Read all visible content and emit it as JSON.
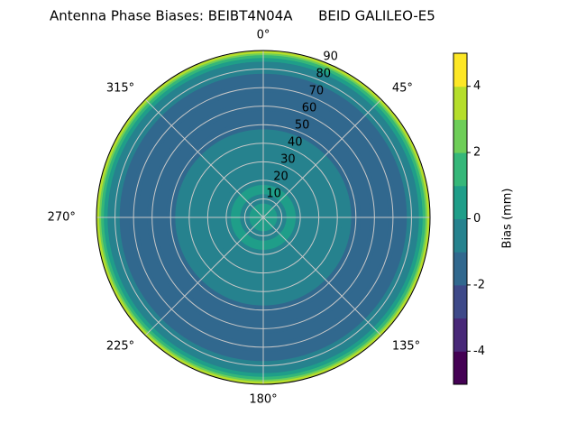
{
  "chart_data": {
    "type": "polar-contour",
    "title": "Antenna Phase Biases: BEIBT4N04A      BEID GALILEO-E5",
    "colorbar_label": "Bias (mm)",
    "zenith": [
      0,
      5,
      10,
      15,
      20,
      25,
      30,
      35,
      40,
      45,
      50,
      55,
      60,
      65,
      70,
      75,
      80,
      83,
      85,
      87,
      88,
      89,
      90
    ],
    "values": [
      0.6,
      0.4,
      -0.2,
      0.3,
      -0.3,
      -0.4,
      -0.4,
      -0.5,
      -0.6,
      -0.9,
      -1.2,
      -1.4,
      -1.5,
      -1.5,
      -1.5,
      -1.3,
      -0.8,
      -0.3,
      0.5,
      1.5,
      2.5,
      3.5,
      3.8
    ],
    "rlim": [
      0,
      90
    ],
    "rticks": [
      10,
      20,
      30,
      40,
      50,
      60,
      70,
      80,
      90
    ],
    "theta_ticks": [
      {
        "value": 0,
        "label": "0°"
      },
      {
        "value": 45,
        "label": "45°"
      },
      {
        "value": 90,
        "label": "90°"
      },
      {
        "value": 135,
        "label": "135°"
      },
      {
        "value": 180,
        "label": "180°"
      },
      {
        "value": 225,
        "label": "225°"
      },
      {
        "value": 270,
        "label": "270°"
      },
      {
        "value": 315,
        "label": "315°"
      }
    ],
    "grid": true,
    "levels": [
      -5,
      -4,
      -3,
      -2,
      -1,
      0,
      1,
      2,
      3,
      4,
      5
    ],
    "colors": [
      "#440154",
      "#482878",
      "#3e4989",
      "#31688e",
      "#26828e",
      "#1f9e89",
      "#35b779",
      "#6ece58",
      "#b5de2b",
      "#fde725"
    ],
    "cbar_ticks": [
      -4,
      -2,
      0,
      2,
      4
    ]
  }
}
